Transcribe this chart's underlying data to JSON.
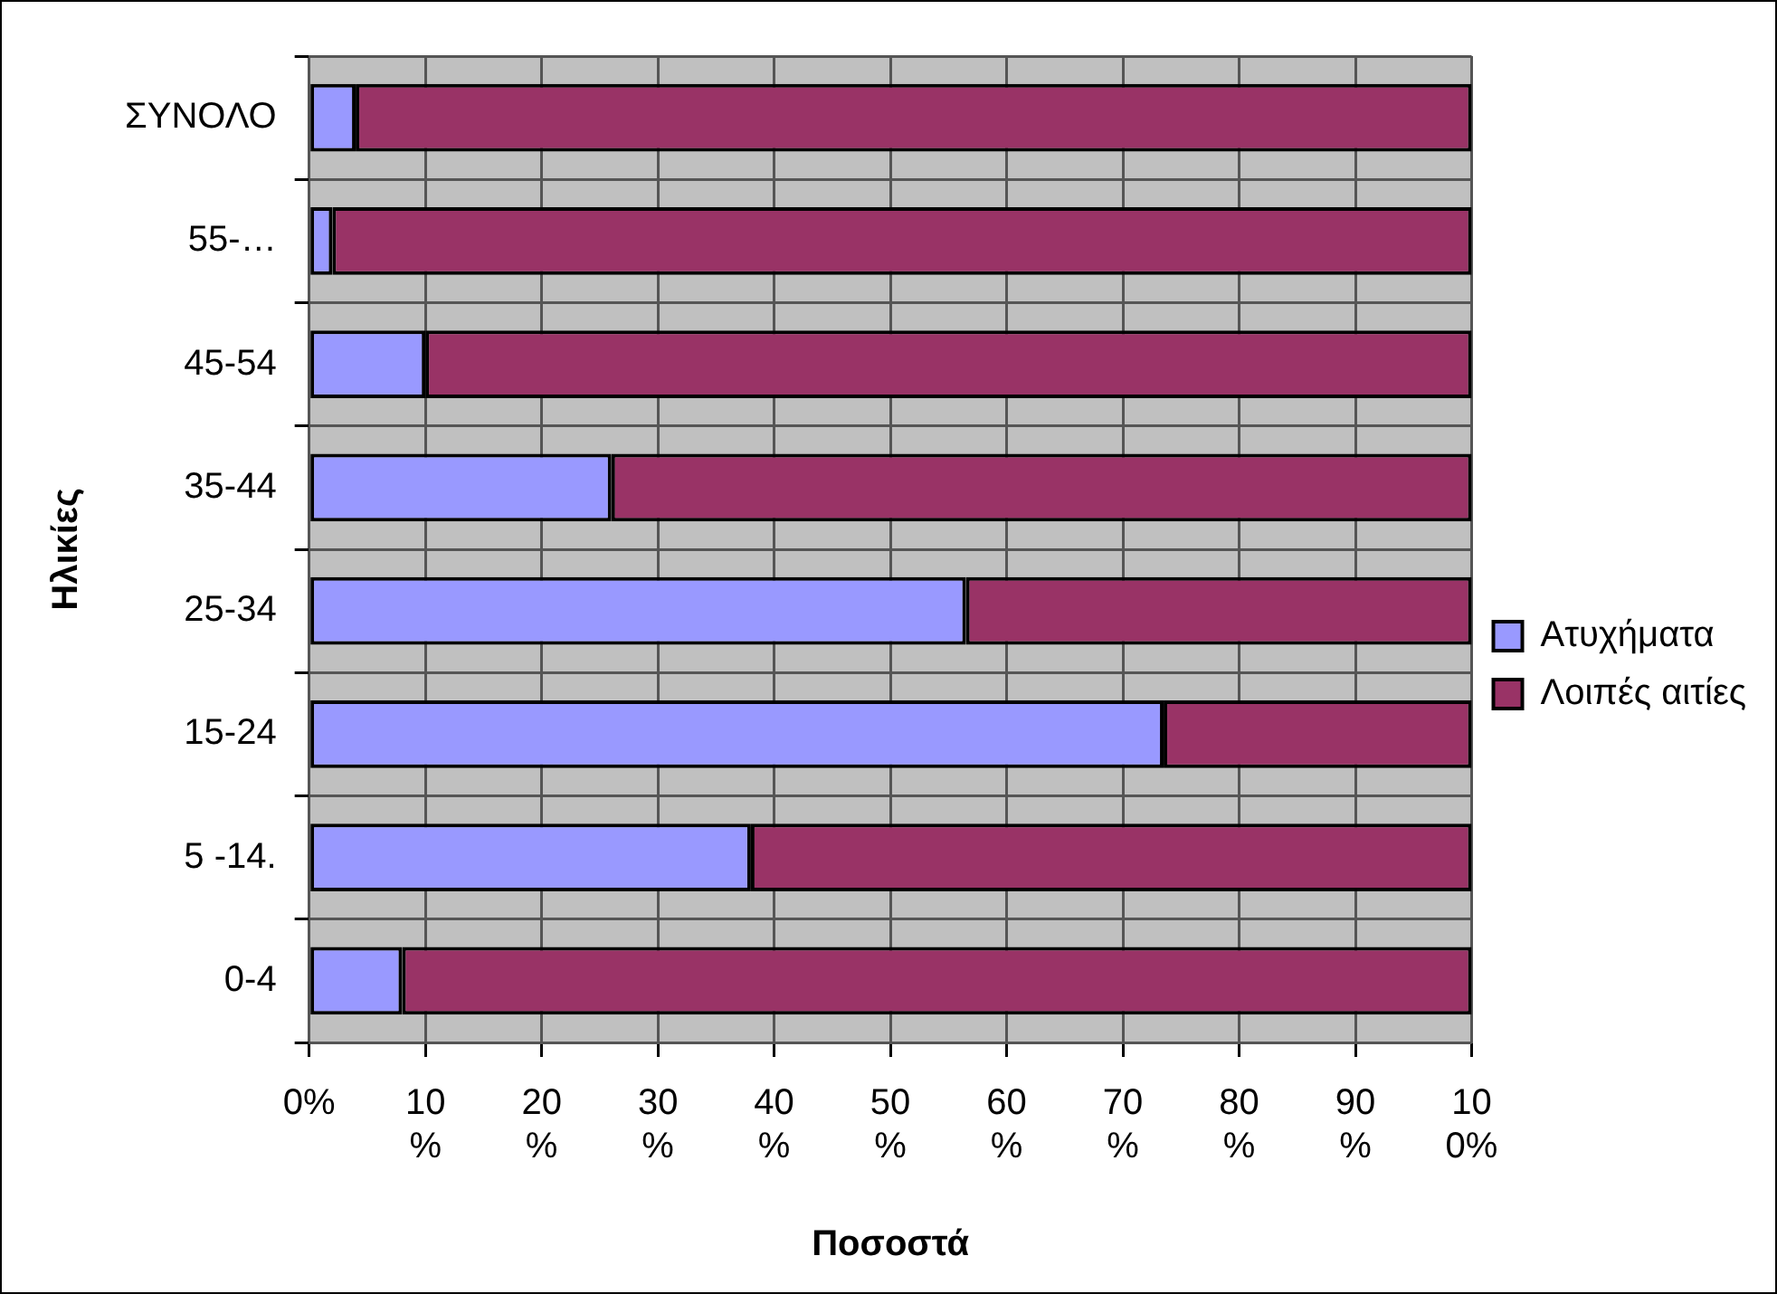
{
  "chart_data": {
    "type": "bar",
    "orientation": "horizontal",
    "stacked": true,
    "xlabel": "Ποσοστά",
    "ylabel": "Ηλικίες",
    "categories": [
      "ΣΥΝΟΛΟ",
      "55-…",
      "45-54",
      "35-44",
      "25-34",
      "15-24",
      "5 -14.",
      "0-4"
    ],
    "series": [
      {
        "name": "Ατυχήματα",
        "color": "#9999ff",
        "values": [
          4,
          2,
          10,
          26,
          56.5,
          73.5,
          38,
          8
        ]
      },
      {
        "name": "Λοιπές αιτίες",
        "color": "#993366",
        "values": [
          96,
          98,
          90,
          74,
          43.5,
          26.5,
          62,
          92
        ]
      }
    ],
    "xlim": [
      0,
      100
    ],
    "xticks": [
      {
        "value": 0,
        "label": "0%"
      },
      {
        "value": 10,
        "label": "10%"
      },
      {
        "value": 20,
        "label": "20%"
      },
      {
        "value": 30,
        "label": "30%"
      },
      {
        "value": 40,
        "label": "40%"
      },
      {
        "value": 50,
        "label": "50%"
      },
      {
        "value": 60,
        "label": "60%"
      },
      {
        "value": 70,
        "label": "70%"
      },
      {
        "value": 80,
        "label": "80%"
      },
      {
        "value": 90,
        "label": "90%"
      },
      {
        "value": 100,
        "label": "100%"
      }
    ],
    "grid": true,
    "legend": "right"
  }
}
